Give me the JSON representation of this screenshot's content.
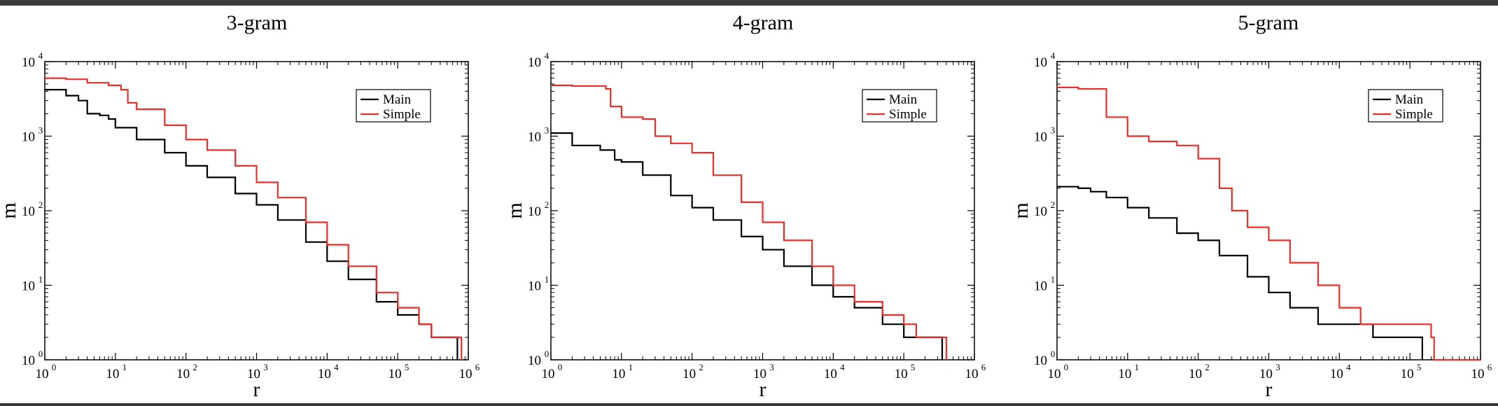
{
  "colors": {
    "main": "#000000",
    "simple": "#e8302a",
    "frame": "#000000"
  },
  "chart_data": [
    {
      "type": "line",
      "title": "3-gram",
      "xlabel": "r",
      "ylabel": "m",
      "xscale": "log",
      "yscale": "log",
      "xlim": [
        1,
        1000000
      ],
      "ylim": [
        1,
        10000
      ],
      "xticklabels": [
        "10",
        "10",
        "10",
        "10",
        "10",
        "10",
        "10"
      ],
      "xtickexps": [
        "0",
        "1",
        "2",
        "3",
        "4",
        "5",
        "6"
      ],
      "yticklabels": [
        "10",
        "10",
        "10",
        "10",
        "10"
      ],
      "ytickexps": [
        "0",
        "1",
        "2",
        "3",
        "4"
      ],
      "legend": {
        "placement": "top-right",
        "entries": [
          "Main",
          "Simple"
        ]
      },
      "series": [
        {
          "name": "Main",
          "color": "#000000",
          "x": [
            1,
            2,
            3,
            4,
            6,
            8,
            10,
            20,
            50,
            100,
            200,
            500,
            1000,
            2000,
            5000,
            10000,
            20000,
            50000,
            100000,
            200000,
            300000,
            700000,
            700000
          ],
          "y": [
            4200,
            3500,
            3000,
            2000,
            1900,
            1700,
            1300,
            900,
            600,
            400,
            280,
            170,
            120,
            75,
            38,
            21,
            12,
            6,
            4,
            3,
            2,
            2,
            1
          ]
        },
        {
          "name": "Simple",
          "color": "#e8302a",
          "x": [
            1,
            2,
            4,
            8,
            12,
            15,
            20,
            50,
            100,
            200,
            500,
            1000,
            2000,
            5000,
            10000,
            20000,
            50000,
            100000,
            200000,
            300000,
            700000,
            800000
          ],
          "y": [
            6000,
            5800,
            5200,
            4800,
            4200,
            2800,
            2300,
            1400,
            900,
            650,
            400,
            240,
            150,
            70,
            35,
            18,
            8,
            5,
            3,
            2,
            2,
            1
          ]
        }
      ]
    },
    {
      "type": "line",
      "title": "4-gram",
      "xlabel": "r",
      "ylabel": "m",
      "xscale": "log",
      "yscale": "log",
      "xlim": [
        1,
        1000000
      ],
      "ylim": [
        1,
        10000
      ],
      "xticklabels": [
        "10",
        "10",
        "10",
        "10",
        "10",
        "10",
        "10"
      ],
      "xtickexps": [
        "0",
        "1",
        "2",
        "3",
        "4",
        "5",
        "6"
      ],
      "yticklabels": [
        "10",
        "10",
        "10",
        "10",
        "10"
      ],
      "ytickexps": [
        "0",
        "1",
        "2",
        "3",
        "4"
      ],
      "legend": {
        "placement": "top-right",
        "entries": [
          "Main",
          "Simple"
        ]
      },
      "series": [
        {
          "name": "Main",
          "color": "#000000",
          "x": [
            1,
            2,
            5,
            8,
            10,
            20,
            50,
            100,
            200,
            500,
            1000,
            2000,
            5000,
            10000,
            20000,
            50000,
            100000,
            350000,
            350000
          ],
          "y": [
            1100,
            750,
            650,
            480,
            450,
            300,
            160,
            110,
            75,
            45,
            30,
            18,
            10,
            7,
            5,
            3,
            2,
            2,
            1
          ]
        },
        {
          "name": "Simple",
          "color": "#e8302a",
          "x": [
            1,
            2,
            6,
            7,
            10,
            20,
            30,
            50,
            100,
            200,
            500,
            1000,
            2000,
            5000,
            10000,
            20000,
            50000,
            100000,
            150000,
            400000,
            400000
          ],
          "y": [
            4800,
            4700,
            4300,
            2500,
            1800,
            1700,
            1000,
            800,
            600,
            300,
            130,
            70,
            40,
            18,
            10,
            6,
            4,
            3,
            2,
            2,
            1
          ]
        }
      ]
    },
    {
      "type": "line",
      "title": "5-gram",
      "xlabel": "r",
      "ylabel": "m",
      "xscale": "log",
      "yscale": "log",
      "xlim": [
        1,
        1000000
      ],
      "ylim": [
        1,
        10000
      ],
      "xticklabels": [
        "10",
        "10",
        "10",
        "10",
        "10",
        "10",
        "10"
      ],
      "xtickexps": [
        "0",
        "1",
        "2",
        "3",
        "4",
        "5",
        "6"
      ],
      "yticklabels": [
        "10",
        "10",
        "10",
        "10",
        "10"
      ],
      "ytickexps": [
        "0",
        "1",
        "2",
        "3",
        "4"
      ],
      "legend": {
        "placement": "top-right",
        "entries": [
          "Main",
          "Simple"
        ]
      },
      "series": [
        {
          "name": "Main",
          "color": "#000000",
          "x": [
            1,
            2,
            3,
            5,
            10,
            20,
            50,
            100,
            200,
            500,
            1000,
            2000,
            5000,
            10000,
            30000,
            30000,
            150000,
            150000
          ],
          "y": [
            210,
            200,
            180,
            150,
            110,
            80,
            50,
            40,
            25,
            13,
            8,
            5,
            3,
            3,
            2,
            2,
            2,
            1
          ]
        },
        {
          "name": "Simple",
          "color": "#e8302a",
          "x": [
            1,
            2,
            4,
            5,
            10,
            20,
            50,
            100,
            200,
            300,
            500,
            1000,
            2000,
            5000,
            10000,
            20000,
            60000,
            200000,
            220000,
            1000000
          ],
          "y": [
            4500,
            4300,
            4300,
            1800,
            1000,
            850,
            750,
            500,
            200,
            100,
            60,
            40,
            20,
            10,
            5,
            3,
            3,
            2,
            1,
            1
          ]
        }
      ]
    }
  ]
}
